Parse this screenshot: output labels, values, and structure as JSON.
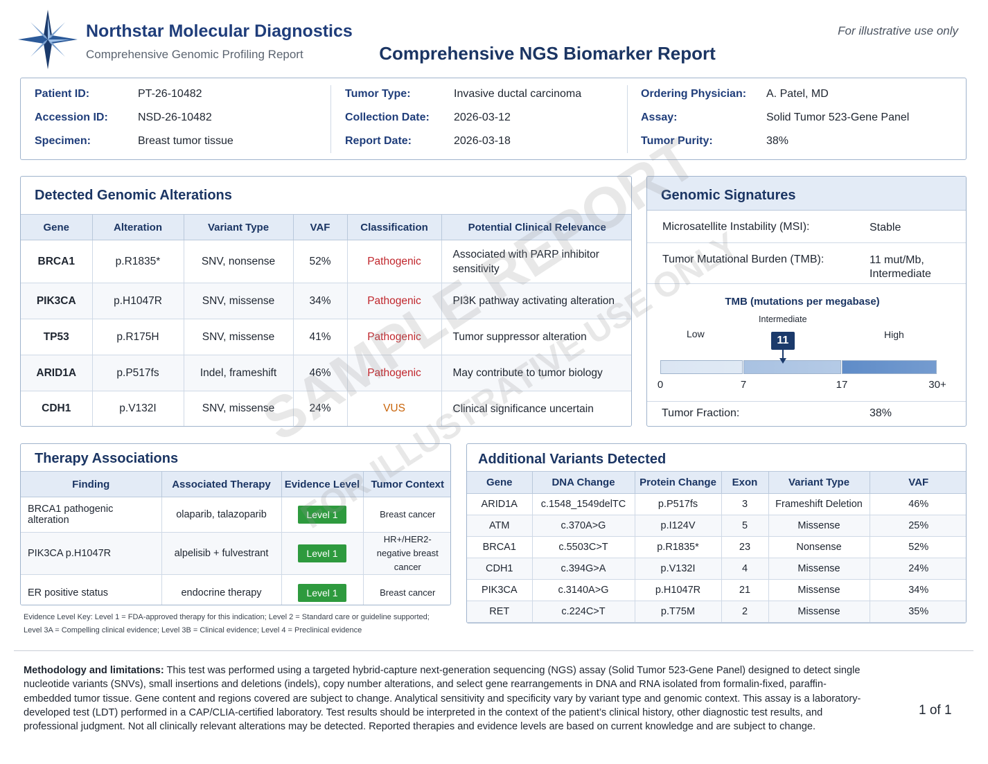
{
  "header": {
    "company": "Northstar Molecular Diagnostics",
    "subtitle": "Comprehensive Genomic Profiling Report",
    "title": "Comprehensive NGS Biomarker Report",
    "note": "For illustrative use only"
  },
  "patient": {
    "columns": [
      [
        {
          "label": "Patient ID:",
          "value": "PT-26-10482"
        },
        {
          "label": "Accession ID:",
          "value": "NSD-26-10482"
        },
        {
          "label": "Specimen:",
          "value": "Breast tumor tissue"
        }
      ],
      [
        {
          "label": "Tumor Type:",
          "value": "Invasive ductal carcinoma"
        },
        {
          "label": "Collection Date:",
          "value": "2026-03-12"
        },
        {
          "label": "Report Date:",
          "value": "2026-03-18"
        }
      ],
      [
        {
          "label": "Ordering Physician:",
          "value": "A. Patel, MD"
        },
        {
          "label": "Assay:",
          "value": "Solid Tumor 523-Gene Panel"
        },
        {
          "label": "Tumor Purity:",
          "value": "38%"
        }
      ]
    ]
  },
  "alterations": {
    "title": "Detected Genomic Alterations",
    "columns": [
      "Gene",
      "Alteration",
      "Variant Type",
      "VAF",
      "Classification",
      "Potential Clinical Relevance"
    ],
    "rows": [
      [
        "BRCA1",
        "p.R1835*",
        "SNV, nonsense",
        "52%",
        "Pathogenic",
        "Associated with PARP inhibitor sensitivity"
      ],
      [
        "PIK3CA",
        "p.H1047R",
        "SNV, missense",
        "34%",
        "Pathogenic",
        "PI3K pathway activating alteration"
      ],
      [
        "TP53",
        "p.R175H",
        "SNV, missense",
        "41%",
        "Pathogenic",
        "Tumor suppressor alteration"
      ],
      [
        "ARID1A",
        "p.P517fs",
        "Indel, frameshift",
        "46%",
        "Pathogenic",
        "May contribute to tumor biology"
      ],
      [
        "CDH1",
        "p.V132I",
        "SNV, missense",
        "24%",
        "VUS",
        "Clinical significance uncertain"
      ]
    ],
    "classification_colors": {
      "Pathogenic": "#c0262c",
      "VUS": "#c8640a"
    }
  },
  "signatures": {
    "title": "Genomic Signatures",
    "rows": [
      {
        "label": "Microsatellite Instability (MSI):",
        "value": "Stable"
      },
      {
        "label": "Tumor Mutational Burden (TMB):",
        "value": "11 mut/Mb, Intermediate"
      }
    ],
    "tmb_scale": {
      "title": "TMB (mutations per megabase)",
      "low": "Low",
      "intermediate": "Intermediate",
      "high": "High",
      "value": 11,
      "ticks": [
        0,
        7,
        17,
        {
          "value": 30,
          "label": "30+"
        }
      ]
    },
    "fraction": {
      "label": "Tumor Fraction:",
      "value": "38%"
    }
  },
  "therapy": {
    "title": "Therapy Associations",
    "columns": [
      "Finding",
      "Associated Therapy",
      "Evidence Level",
      "Tumor Context"
    ],
    "rows": [
      [
        "BRCA1 pathogenic alteration",
        "olaparib, talazoparib",
        "Level 1",
        "Breast cancer"
      ],
      [
        "PIK3CA p.H1047R",
        "alpelisib + fulvestrant",
        "Level 1",
        "HR+/HER2-negative breast cancer"
      ],
      [
        "ER positive status",
        "endocrine therapy",
        "Level 1",
        "Breast cancer"
      ]
    ],
    "key": "Evidence Level Key: Level 1 = FDA-approved therapy for this indication; Level 2 = Standard care or guideline supported; Level 3A = Compelling clinical evidence; Level 3B = Clinical evidence; Level 4 = Preclinical evidence"
  },
  "additional": {
    "title": "Additional Variants Detected",
    "columns": [
      "Gene",
      "DNA Change",
      "Protein Change",
      "Exon",
      "Variant Type",
      "VAF"
    ],
    "rows": [
      [
        "ARID1A",
        "c.1548_1549delTC",
        "p.P517fs",
        "3",
        "Frameshift Deletion",
        "46%"
      ],
      [
        "ATM",
        "c.370A>G",
        "p.I124V",
        "5",
        "Missense",
        "25%"
      ],
      [
        "BRCA1",
        "c.5503C>T",
        "p.R1835*",
        "23",
        "Nonsense",
        "52%"
      ],
      [
        "CDH1",
        "c.394G>A",
        "p.V132I",
        "4",
        "Missense",
        "24%"
      ],
      [
        "PIK3CA",
        "c.3140A>G",
        "p.H1047R",
        "21",
        "Missense",
        "34%"
      ],
      [
        "RET",
        "c.224C>T",
        "p.T75M",
        "2",
        "Missense",
        "35%"
      ]
    ]
  },
  "footer": {
    "methodology_label": "Methodology and limitations:",
    "methodology": "This test was performed using a targeted hybrid-capture next-generation sequencing (NGS) assay (Solid Tumor 523-Gene Panel) designed to detect single nucleotide variants (SNVs), small insertions and deletions (indels), copy number alterations, and select gene rearrangements in DNA and RNA isolated from formalin-fixed, paraffin-embedded tumor tissue. Gene content and regions covered are subject to change. Analytical sensitivity and specificity vary by variant type and genomic context. This assay is a laboratory-developed test (LDT) performed in a CAP/CLIA-certified laboratory. Test results should be interpreted in the context of the patient’s clinical history, other diagnostic test results, and professional judgment. Not all clinically relevant alterations may be detected. Reported therapies and evidence levels are based on current knowledge and are subject to change.",
    "page": "1 of 1"
  },
  "watermark": {
    "main": "SAMPLE REPORT",
    "sub": "FOR ILLUSTRATIVE USE ONLY"
  }
}
